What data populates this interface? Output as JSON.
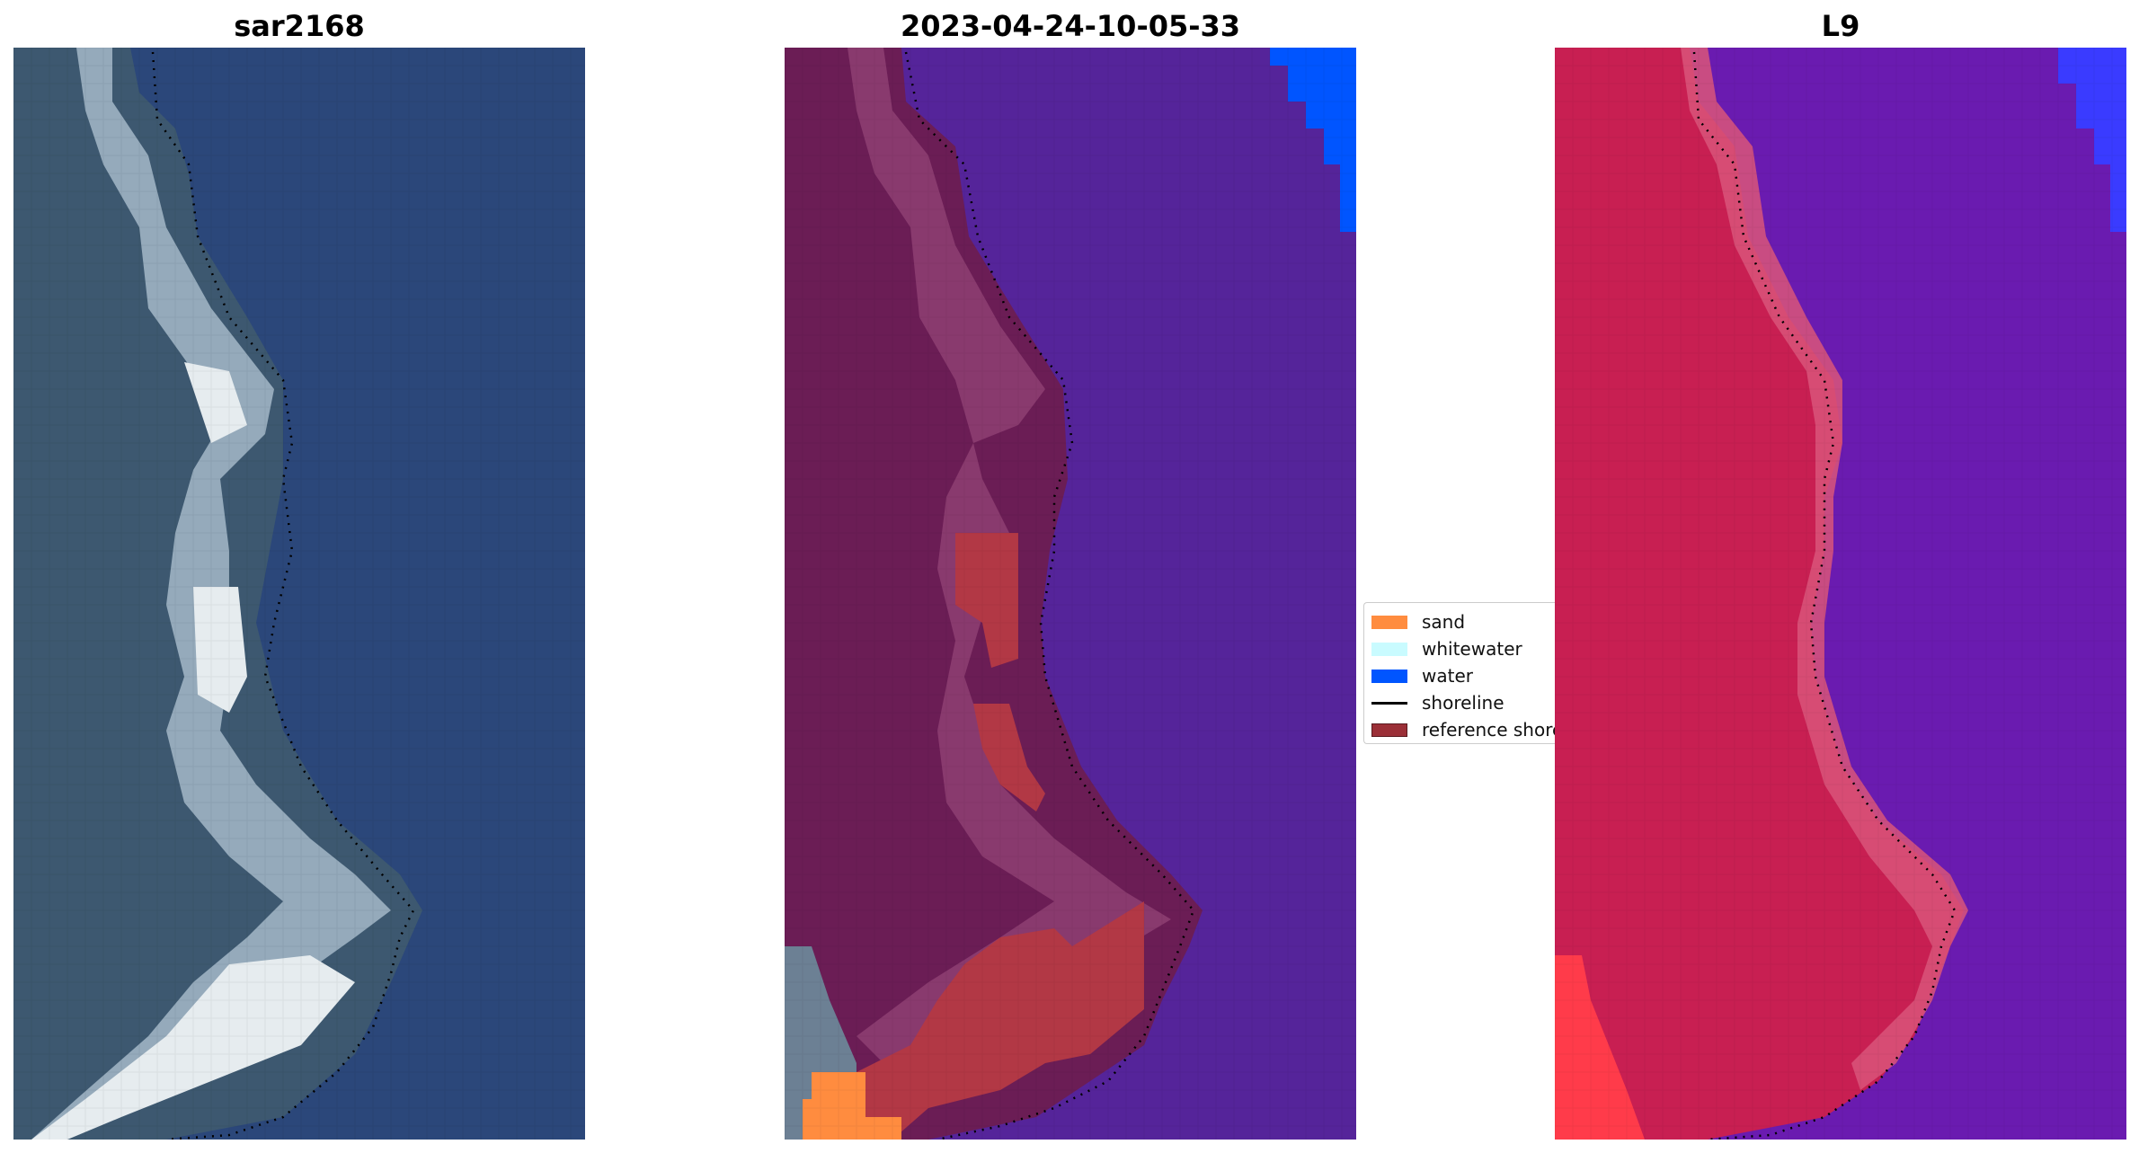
{
  "panels": [
    {
      "title": "sar2168"
    },
    {
      "title": "2023-04-24-10-05-33"
    },
    {
      "title": "L9"
    }
  ],
  "legend": {
    "items": [
      {
        "label": "sand",
        "color": "#ff8c3f",
        "kind": "patch"
      },
      {
        "label": "whitewater",
        "color": "#c9fbff",
        "kind": "patch"
      },
      {
        "label": "water",
        "color": "#0055ff",
        "kind": "patch"
      },
      {
        "label": "shoreline",
        "color": "#000000",
        "kind": "line"
      },
      {
        "label": "reference shoreline",
        "color": "#9b2f37",
        "kind": "patch"
      }
    ]
  },
  "colors": {
    "rgb_water": "#2b477a",
    "rgb_land": "#3d5870",
    "rgb_surf": "#c7d6e0",
    "class_water": "#55249a",
    "class_land": "#6b1d55",
    "class_land_light": "#8e3f73",
    "class_sand": "#ff8c3f",
    "class_ref": "#b23845",
    "class_water_blue": "#0055ff",
    "false_water": "#6a1bb0",
    "false_land": "#c81f52",
    "false_land_light": "#d9557a",
    "false_blue": "#3a3bff"
  }
}
